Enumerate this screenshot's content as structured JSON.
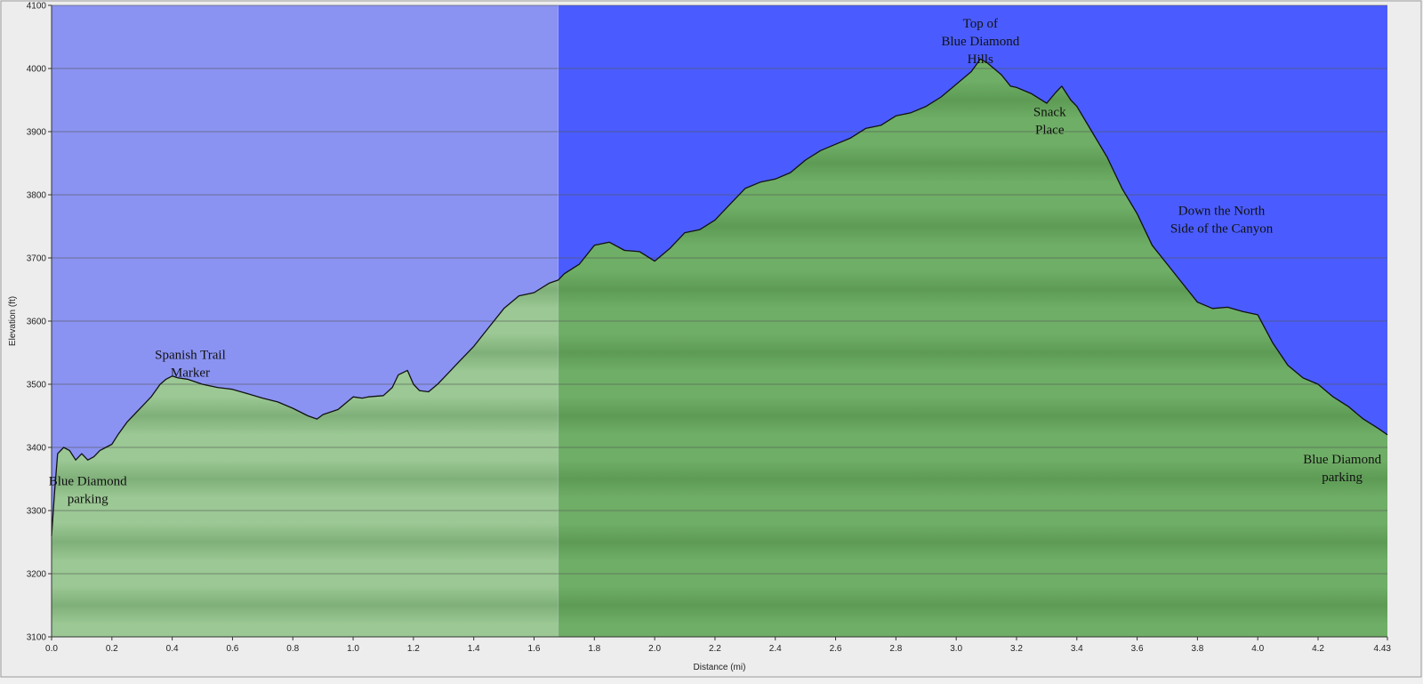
{
  "chart_data": {
    "type": "area",
    "xlabel": "Distance   (mi)",
    "ylabel": "Elevation (ft)",
    "xlim": [
      0,
      4.43
    ],
    "ylim": [
      3100,
      4100
    ],
    "x_ticks": [
      0.0,
      0.2,
      0.4,
      0.6,
      0.8,
      1.0,
      1.2,
      1.4,
      1.6,
      1.8,
      2.0,
      2.2,
      2.4,
      2.6,
      2.8,
      3.0,
      3.2,
      3.4,
      3.6,
      3.8,
      4.0,
      4.2,
      4.43
    ],
    "x_tick_labels": [
      "0.0",
      "0.2",
      "0.4",
      "0.6",
      "0.8",
      "1.0",
      "1.2",
      "1.4",
      "1.6",
      "1.8",
      "2.0",
      "2.2",
      "2.4",
      "2.6",
      "2.8",
      "3.0",
      "3.2",
      "3.4",
      "3.6",
      "3.8",
      "4.0",
      "4.2",
      "4.43"
    ],
    "y_ticks": [
      3100,
      3200,
      3300,
      3400,
      3500,
      3600,
      3700,
      3800,
      3900,
      4000,
      4100
    ],
    "y_tick_labels": [
      "3100",
      "3200",
      "3300",
      "3400",
      "3500",
      "3600",
      "3700",
      "3800",
      "3900",
      "4000",
      "4100"
    ],
    "grid": "horizontal",
    "highlight_range": [
      0,
      1.68
    ],
    "colors": {
      "sky_highlight": "#8a93f2",
      "sky": "#4a5cff",
      "fill_highlight": "#9bc894",
      "fill": "#6fae66",
      "line": "#111111",
      "gridline": "#555555"
    },
    "series": [
      {
        "x": [
          0.0,
          0.01,
          0.02,
          0.04,
          0.06,
          0.08,
          0.1,
          0.12,
          0.14,
          0.16,
          0.18,
          0.2,
          0.22,
          0.25,
          0.28,
          0.3,
          0.33,
          0.36,
          0.38,
          0.4,
          0.42,
          0.45,
          0.5,
          0.55,
          0.6,
          0.65,
          0.7,
          0.75,
          0.8,
          0.85,
          0.88,
          0.9,
          0.95,
          1.0,
          1.03,
          1.05,
          1.1,
          1.13,
          1.15,
          1.18,
          1.2,
          1.22,
          1.25,
          1.28,
          1.3,
          1.35,
          1.4,
          1.45,
          1.5,
          1.55,
          1.6,
          1.65,
          1.68,
          1.7,
          1.75,
          1.8,
          1.85,
          1.9,
          1.95,
          2.0,
          2.05,
          2.1,
          2.15,
          2.2,
          2.25,
          2.3,
          2.35,
          2.4,
          2.45,
          2.5,
          2.55,
          2.6,
          2.65,
          2.7,
          2.75,
          2.8,
          2.85,
          2.9,
          2.95,
          3.0,
          3.05,
          3.08,
          3.1,
          3.15,
          3.18,
          3.2,
          3.25,
          3.3,
          3.33,
          3.35,
          3.38,
          3.4,
          3.45,
          3.5,
          3.55,
          3.6,
          3.65,
          3.7,
          3.75,
          3.8,
          3.85,
          3.9,
          3.95,
          4.0,
          4.05,
          4.1,
          4.15,
          4.2,
          4.25,
          4.3,
          4.35,
          4.4,
          4.43
        ],
        "y": [
          3260,
          3330,
          3390,
          3400,
          3395,
          3380,
          3390,
          3380,
          3385,
          3395,
          3400,
          3405,
          3420,
          3440,
          3455,
          3465,
          3480,
          3500,
          3508,
          3513,
          3510,
          3508,
          3500,
          3495,
          3492,
          3485,
          3478,
          3472,
          3462,
          3450,
          3445,
          3452,
          3460,
          3480,
          3478,
          3480,
          3482,
          3495,
          3515,
          3522,
          3500,
          3490,
          3488,
          3500,
          3510,
          3535,
          3560,
          3590,
          3620,
          3640,
          3645,
          3660,
          3665,
          3675,
          3690,
          3720,
          3725,
          3712,
          3710,
          3695,
          3715,
          3740,
          3745,
          3760,
          3785,
          3810,
          3820,
          3825,
          3835,
          3855,
          3870,
          3880,
          3890,
          3905,
          3910,
          3925,
          3930,
          3940,
          3955,
          3975,
          3995,
          4015,
          4010,
          3990,
          3972,
          3970,
          3960,
          3945,
          3962,
          3972,
          3950,
          3940,
          3900,
          3860,
          3810,
          3770,
          3720,
          3690,
          3660,
          3630,
          3620,
          3622,
          3615,
          3610,
          3565,
          3530,
          3510,
          3500,
          3480,
          3465,
          3445,
          3430,
          3420
        ]
      }
    ],
    "annotations": [
      {
        "lines": [
          "Blue Diamond",
          "parking"
        ],
        "x": 0.12,
        "y": 3340
      },
      {
        "lines": [
          "Spanish Trail",
          "Marker"
        ],
        "x": 0.46,
        "y": 3540
      },
      {
        "lines": [
          "Top of",
          "Blue Diamond",
          "Hills"
        ],
        "x": 3.08,
        "y": 4065
      },
      {
        "lines": [
          "Snack",
          "Place"
        ],
        "x": 3.31,
        "y": 3925
      },
      {
        "lines": [
          "Down the North",
          "Side of the Canyon"
        ],
        "x": 3.88,
        "y": 3768
      },
      {
        "lines": [
          "Blue Diamond",
          "parking"
        ],
        "x": 4.28,
        "y": 3375
      }
    ]
  }
}
